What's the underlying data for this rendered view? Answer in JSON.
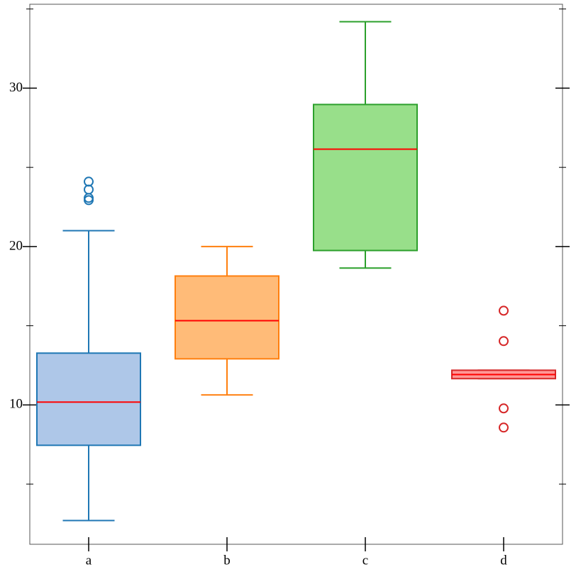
{
  "chart_data": {
    "type": "box",
    "categories": [
      "a",
      "b",
      "c",
      "d"
    ],
    "boxes": [
      {
        "whislo": 2.7,
        "q1": 7.45,
        "med": 10.18,
        "q3": 13.27,
        "whishi": 21.0,
        "fliers": [
          24.1,
          23.6,
          23.07,
          22.93
        ],
        "color": "#1f77b4",
        "fill": "#aec7e8"
      },
      {
        "whislo": 10.63,
        "q1": 12.91,
        "med": 15.32,
        "q3": 18.14,
        "whishi": 20.0,
        "fliers": [],
        "color": "#ff7f0e",
        "fill": "#ffbb78"
      },
      {
        "whislo": 18.64,
        "q1": 19.75,
        "med": 26.15,
        "q3": 28.97,
        "whishi": 34.2,
        "fliers": [],
        "color": "#2ca02c",
        "fill": "#98df8a"
      },
      {
        "whislo": 11.66,
        "q1": 11.66,
        "med": 11.92,
        "q3": 12.19,
        "whishi": 12.19,
        "fliers": [
          15.95,
          14.03,
          9.78,
          8.57
        ],
        "color": "#d62728",
        "fill": "#ff9896"
      }
    ],
    "median_color": "#ff0000",
    "ylim": [
      1.2,
      35.3
    ],
    "yticks": [
      10,
      20,
      30
    ],
    "minor_yticks": [
      5,
      15,
      25,
      35
    ]
  }
}
